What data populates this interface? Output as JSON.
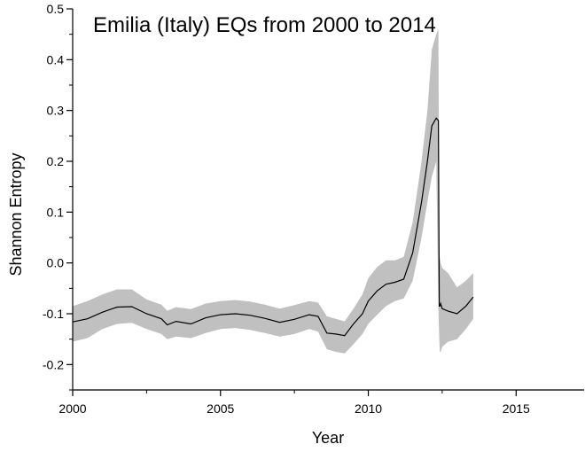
{
  "chart_data": {
    "type": "line",
    "title": "Emilia (Italy) EQs from 2000 to 2014",
    "xlabel": "Year",
    "ylabel": "Shannon Entropy",
    "xlim": [
      2000,
      2017.3
    ],
    "ylim": [
      -0.25,
      0.5
    ],
    "x_ticks": [
      "2000",
      "2005",
      "2010",
      "2015"
    ],
    "y_ticks": [
      "-0.2",
      "-0.1",
      "0.0",
      "0.1",
      "0.2",
      "0.3",
      "0.4",
      "0.5"
    ],
    "grid": false,
    "colors": {
      "line": "#000000",
      "band": "#c0c0c0"
    },
    "series": [
      {
        "x": [
          2000,
          2000.5,
          2001,
          2001.5,
          2002,
          2002.5,
          2003,
          2003.2,
          2003.5,
          2004,
          2004.5,
          2005,
          2005.5,
          2006,
          2006.5,
          2007,
          2007.5,
          2008,
          2008.3,
          2008.6,
          2008.9,
          2009.2,
          2009.5,
          2009.8,
          2010,
          2010.3,
          2010.6,
          2010.9,
          2011.2,
          2011.5,
          2011.8,
          2012,
          2012.15,
          2012.3,
          2012.37,
          2012.4,
          2012.42,
          2012.45,
          2012.5,
          2012.7,
          2013,
          2013.3,
          2013.55
        ],
        "y": [
          -0.116,
          -0.11,
          -0.097,
          -0.087,
          -0.086,
          -0.1,
          -0.11,
          -0.122,
          -0.115,
          -0.12,
          -0.108,
          -0.102,
          -0.1,
          -0.103,
          -0.109,
          -0.117,
          -0.111,
          -0.102,
          -0.105,
          -0.138,
          -0.14,
          -0.143,
          -0.12,
          -0.1,
          -0.075,
          -0.055,
          -0.042,
          -0.038,
          -0.032,
          0.02,
          0.12,
          0.2,
          0.27,
          0.285,
          0.28,
          -0.085,
          -0.085,
          -0.08,
          -0.09,
          -0.095,
          -0.1,
          -0.085,
          -0.067
        ],
        "upper": [
          -0.085,
          -0.075,
          -0.062,
          -0.052,
          -0.052,
          -0.072,
          -0.082,
          -0.094,
          -0.087,
          -0.091,
          -0.08,
          -0.075,
          -0.073,
          -0.076,
          -0.082,
          -0.09,
          -0.083,
          -0.075,
          -0.078,
          -0.105,
          -0.11,
          -0.115,
          -0.09,
          -0.062,
          -0.03,
          -0.008,
          0.005,
          0.005,
          0.012,
          0.08,
          0.2,
          0.3,
          0.42,
          0.45,
          0.46,
          0.015,
          0.01,
          0.0,
          -0.01,
          -0.02,
          -0.048,
          -0.035,
          -0.02
        ],
        "lower": [
          -0.155,
          -0.148,
          -0.13,
          -0.12,
          -0.118,
          -0.13,
          -0.14,
          -0.15,
          -0.145,
          -0.148,
          -0.138,
          -0.13,
          -0.128,
          -0.132,
          -0.138,
          -0.145,
          -0.14,
          -0.13,
          -0.135,
          -0.17,
          -0.175,
          -0.178,
          -0.16,
          -0.14,
          -0.12,
          -0.102,
          -0.085,
          -0.075,
          -0.07,
          -0.035,
          0.05,
          0.12,
          0.17,
          0.2,
          -0.09,
          -0.15,
          -0.175,
          -0.175,
          -0.165,
          -0.155,
          -0.15,
          -0.13,
          -0.11
        ]
      }
    ]
  }
}
